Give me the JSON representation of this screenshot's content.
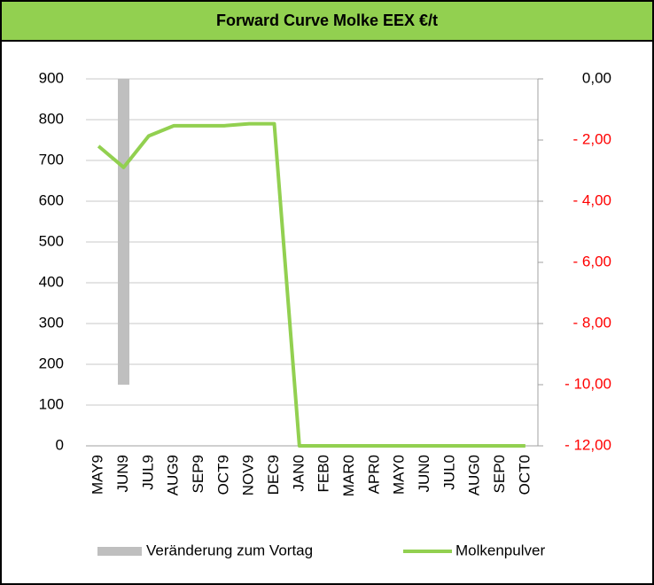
{
  "chart_data": {
    "type": "line",
    "title": "Forward Curve Molke EEX €/t",
    "categories": [
      "MAY9",
      "JUN9",
      "JUL9",
      "AUG9",
      "SEP9",
      "OCT9",
      "NOV9",
      "DEC9",
      "JAN0",
      "FEB0",
      "MAR0",
      "APR0",
      "MAY0",
      "JUN0",
      "JUL0",
      "AUG0",
      "SEP0",
      "OCT0"
    ],
    "series": [
      {
        "name": "Veränderung zum Vortag",
        "type": "bar",
        "axis": "y2",
        "color": "#bfbfbf",
        "values": [
          0,
          -10,
          0,
          0,
          0,
          0,
          0,
          0,
          0,
          0,
          0,
          0,
          0,
          0,
          0,
          0,
          0,
          0
        ]
      },
      {
        "name": "Molkenpulver",
        "type": "line",
        "color": "#92d050",
        "values": [
          735,
          683,
          760,
          785,
          785,
          785,
          790,
          790,
          0,
          0,
          0,
          0,
          0,
          0,
          0,
          0,
          0,
          0
        ]
      }
    ],
    "ylim": [
      0,
      900
    ],
    "yticks": [
      0,
      100,
      200,
      300,
      400,
      500,
      600,
      700,
      800,
      900
    ],
    "y2lim": [
      -12,
      0
    ],
    "y2ticks": [
      {
        "value": 0,
        "label": "0,00"
      },
      {
        "value": -2,
        "label": "- 2,00"
      },
      {
        "value": -4,
        "label": "- 4,00"
      },
      {
        "value": -6,
        "label": "- 6,00"
      },
      {
        "value": -8,
        "label": "- 8,00"
      },
      {
        "value": -10,
        "label": "- 10,00"
      },
      {
        "value": -12,
        "label": "- 12,00"
      }
    ],
    "y2_negative_color": "#ff0000",
    "grid": true,
    "legend": "bottom"
  }
}
